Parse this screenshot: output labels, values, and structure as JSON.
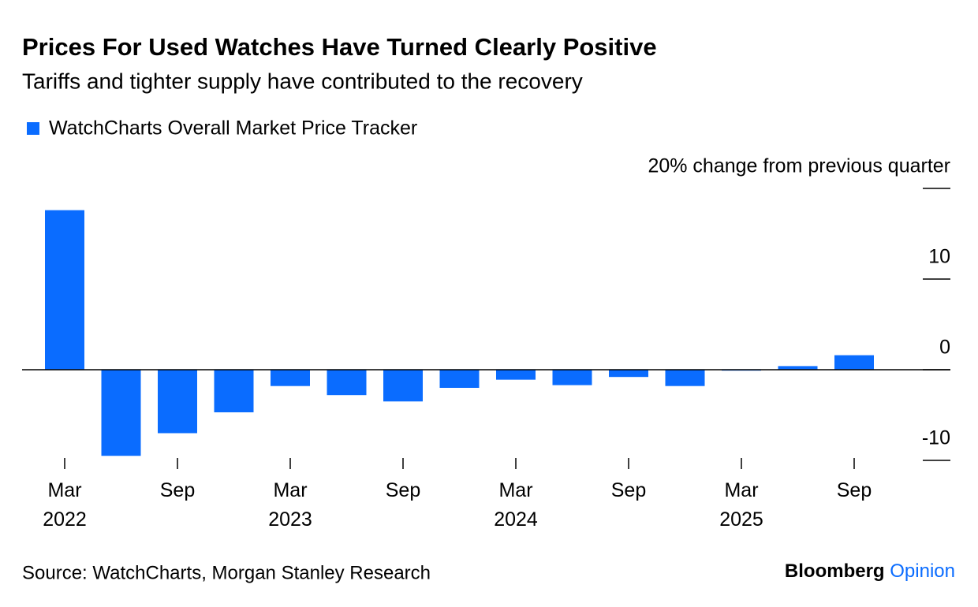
{
  "chart_data": {
    "type": "bar",
    "title": "Prices For Used Watches Have Turned Clearly Positive",
    "subtitle": "Tariffs and tighter supply have contributed to the recovery",
    "categories": [
      "Mar 2022",
      null,
      "Sep",
      null,
      "Mar 2023",
      null,
      "Sep",
      null,
      "Mar 2024",
      null,
      "Sep",
      null,
      "Mar 2025",
      null,
      "Sep"
    ],
    "series": [
      {
        "name": "WatchCharts Overall Market Price Tracker",
        "color": "#0a6cff",
        "values": [
          17.6,
          -9.5,
          -7.0,
          -4.7,
          -1.8,
          -2.8,
          -3.5,
          -2.0,
          -1.1,
          -1.7,
          -0.8,
          -1.8,
          -0.1,
          0.4,
          1.6
        ]
      }
    ],
    "ylim": [
      -10,
      20
    ],
    "yticks": [
      {
        "value": 20,
        "label": "20% change from previous quarter"
      },
      10,
      0,
      -10
    ],
    "source": "Source: WatchCharts, Morgan Stanley Research",
    "brand": [
      "Bloomberg",
      "Opinion"
    ]
  }
}
